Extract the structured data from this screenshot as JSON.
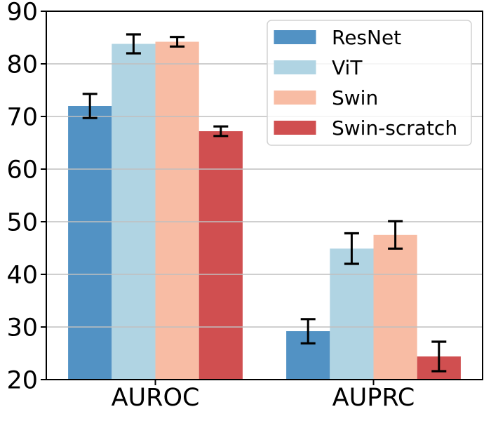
{
  "chart_data": {
    "type": "bar",
    "title": "",
    "xlabel": "",
    "ylabel": "",
    "categories": [
      "AUROC",
      "AUPRC"
    ],
    "series": [
      {
        "name": "ResNet",
        "color": "#5292c4",
        "values": [
          72.0,
          29.2
        ],
        "errors": [
          2.3,
          2.3
        ]
      },
      {
        "name": "ViT",
        "color": "#b0d4e3",
        "values": [
          83.8,
          44.9
        ],
        "errors": [
          1.8,
          2.9
        ]
      },
      {
        "name": "Swin",
        "color": "#f8bca4",
        "values": [
          84.2,
          47.5
        ],
        "errors": [
          0.9,
          2.6
        ]
      },
      {
        "name": "Swin-scratch",
        "color": "#d04f50",
        "values": [
          67.2,
          24.4
        ],
        "errors": [
          0.9,
          2.8
        ]
      }
    ],
    "ylim": [
      20,
      90
    ],
    "yticks": [
      20,
      30,
      40,
      50,
      60,
      70,
      80,
      90
    ],
    "grid": true,
    "grid_color": "#bfbfbf",
    "error_bar_color": "#000000",
    "spine_color": "#000000",
    "legend": {
      "position": "upper right",
      "frame_border_color": "#d2d2d2",
      "entries": [
        "ResNet",
        "ViT",
        "Swin",
        "Swin-scratch"
      ]
    }
  }
}
